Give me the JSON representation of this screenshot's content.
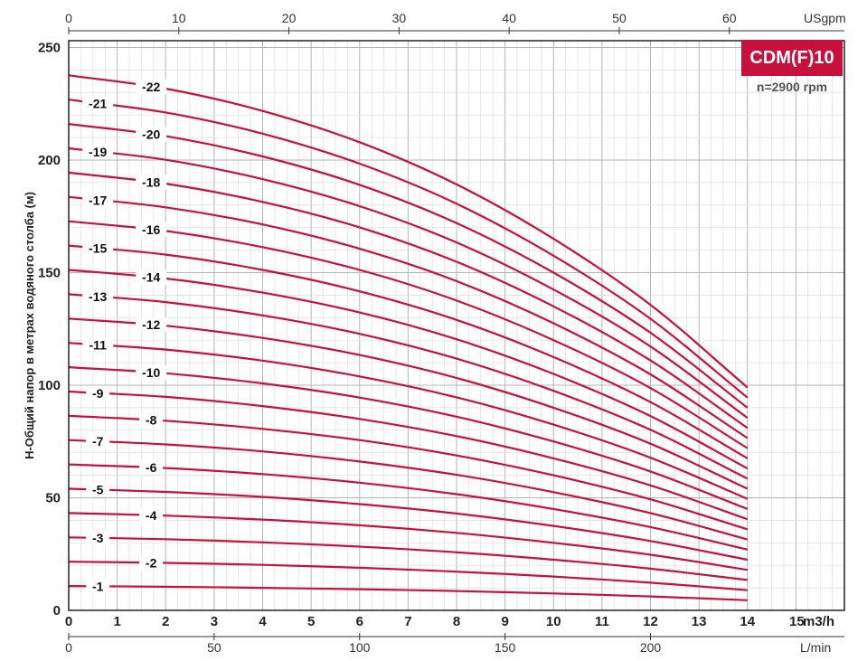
{
  "chart_data": {
    "type": "line",
    "model": "CDM(F)10",
    "speed": "n=2900 rpm",
    "ylabel": "Н-Общий напор в метрах водяного столба (м)",
    "x_unit_bottom": "m3/h",
    "x_unit_top": "USgpm",
    "x_unit_lmin": "L/min",
    "xlim": [
      0,
      16
    ],
    "ylim": [
      0,
      253
    ],
    "x_ticks": [
      "0",
      "1",
      "2",
      "3",
      "4",
      "5",
      "6",
      "7",
      "8",
      "9",
      "10",
      "11",
      "12",
      "13",
      "14",
      "15"
    ],
    "y_ticks": [
      "0",
      "50",
      "100",
      "150",
      "200",
      "250"
    ],
    "top_ticks": [
      "0",
      "10",
      "20",
      "30",
      "40",
      "50",
      "60"
    ],
    "lmin_ticks": [
      "0",
      "50",
      "100",
      "150",
      "200"
    ],
    "grid": true,
    "flow_m3h": [
      0,
      2,
      4,
      6,
      8,
      10,
      12,
      14
    ],
    "series": [
      {
        "name": "-1",
        "values": [
          10.8,
          10.5,
          10.0,
          9.4,
          8.6,
          7.5,
          6.2,
          4.5
        ]
      },
      {
        "name": "-2",
        "values": [
          21.6,
          21.1,
          20.2,
          18.9,
          17.2,
          15.0,
          12.3,
          9.0
        ]
      },
      {
        "name": "-3",
        "values": [
          32.4,
          31.6,
          30.2,
          28.3,
          25.8,
          22.5,
          18.5,
          13.5
        ]
      },
      {
        "name": "-4",
        "values": [
          43.2,
          42.1,
          40.3,
          37.8,
          34.4,
          30.0,
          24.7,
          18.0
        ]
      },
      {
        "name": "-5",
        "values": [
          54.0,
          52.6,
          50.4,
          47.2,
          43.0,
          37.5,
          30.8,
          22.5
        ]
      },
      {
        "name": "-6",
        "values": [
          64.8,
          63.2,
          60.5,
          56.7,
          51.6,
          45.0,
          37.0,
          27.0
        ]
      },
      {
        "name": "-7",
        "values": [
          75.6,
          73.7,
          70.6,
          66.1,
          60.2,
          52.5,
          43.2,
          31.5
        ]
      },
      {
        "name": "-8",
        "values": [
          86.4,
          84.2,
          80.6,
          75.6,
          68.8,
          60.0,
          49.3,
          36.0
        ]
      },
      {
        "name": "-9",
        "values": [
          97.2,
          94.8,
          90.7,
          85.0,
          77.4,
          67.5,
          55.5,
          40.5
        ]
      },
      {
        "name": "-10",
        "values": [
          108.0,
          105.3,
          100.8,
          94.5,
          86.0,
          75.0,
          61.7,
          45.0
        ]
      },
      {
        "name": "-11",
        "values": [
          118.8,
          115.8,
          110.9,
          103.9,
          94.6,
          82.5,
          67.8,
          49.5
        ]
      },
      {
        "name": "-12",
        "values": [
          129.6,
          126.4,
          121.0,
          113.4,
          103.2,
          90.0,
          74.0,
          54.0
        ]
      },
      {
        "name": "-13",
        "values": [
          140.4,
          136.9,
          131.0,
          122.8,
          111.8,
          97.5,
          80.2,
          58.5
        ]
      },
      {
        "name": "-14",
        "values": [
          151.2,
          147.4,
          141.1,
          132.3,
          120.4,
          105.0,
          86.3,
          63.0
        ]
      },
      {
        "name": "-15",
        "values": [
          162.0,
          158.0,
          151.2,
          141.7,
          129.0,
          112.5,
          92.5,
          67.5
        ]
      },
      {
        "name": "-16",
        "values": [
          172.8,
          168.5,
          161.3,
          151.2,
          137.6,
          120.0,
          98.7,
          72.0
        ]
      },
      {
        "name": "-17",
        "values": [
          183.6,
          179.0,
          171.4,
          160.6,
          146.2,
          127.5,
          104.8,
          76.5
        ]
      },
      {
        "name": "-18",
        "values": [
          194.4,
          189.5,
          181.4,
          170.1,
          154.8,
          135.0,
          111.0,
          81.0
        ]
      },
      {
        "name": "-19",
        "values": [
          205.2,
          200.1,
          191.5,
          179.5,
          163.4,
          142.5,
          117.2,
          85.5
        ]
      },
      {
        "name": "-20",
        "values": [
          216.0,
          210.6,
          201.6,
          189.0,
          172.0,
          150.0,
          123.3,
          90.0
        ]
      },
      {
        "name": "-21",
        "values": [
          226.8,
          221.1,
          211.7,
          198.4,
          180.6,
          157.5,
          129.5,
          94.5
        ]
      },
      {
        "name": "-22",
        "values": [
          237.6,
          231.7,
          221.8,
          207.9,
          189.2,
          165.0,
          135.7,
          99.0
        ]
      }
    ],
    "line_color": "#c8103c",
    "badge_color": "#c8103c"
  }
}
